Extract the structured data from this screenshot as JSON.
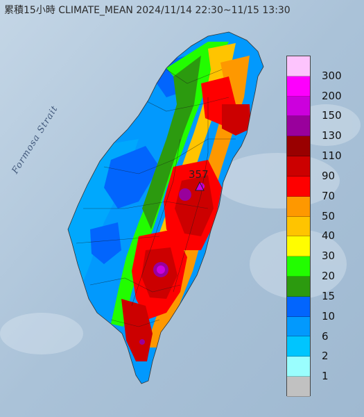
{
  "title": "累積15小時 CLIMATE_MEAN 2024/11/14 22:30~11/15 13:30",
  "strait_label": "Formosa Strait",
  "peak_label": "357",
  "legend": [
    {
      "label": "300",
      "color": "#fdc4fd"
    },
    {
      "label": "200",
      "color": "#fd00fd"
    },
    {
      "label": "150",
      "color": "#cc00dd"
    },
    {
      "label": "130",
      "color": "#99009c"
    },
    {
      "label": "110",
      "color": "#990000"
    },
    {
      "label": "90",
      "color": "#cc0000"
    },
    {
      "label": "70",
      "color": "#fe0000"
    },
    {
      "label": "50",
      "color": "#fe9800"
    },
    {
      "label": "40",
      "color": "#ffc400"
    },
    {
      "label": "30",
      "color": "#fffd00"
    },
    {
      "label": "20",
      "color": "#22fd00"
    },
    {
      "label": "15",
      "color": "#2c9a0f"
    },
    {
      "label": "10",
      "color": "#0265fd"
    },
    {
      "label": "6",
      "color": "#0299fd"
    },
    {
      "label": "2",
      "color": "#00c5fe"
    },
    {
      "label": "1",
      "color": "#9afefe"
    },
    {
      "label": "",
      "color": "#c1c1c1"
    }
  ]
}
